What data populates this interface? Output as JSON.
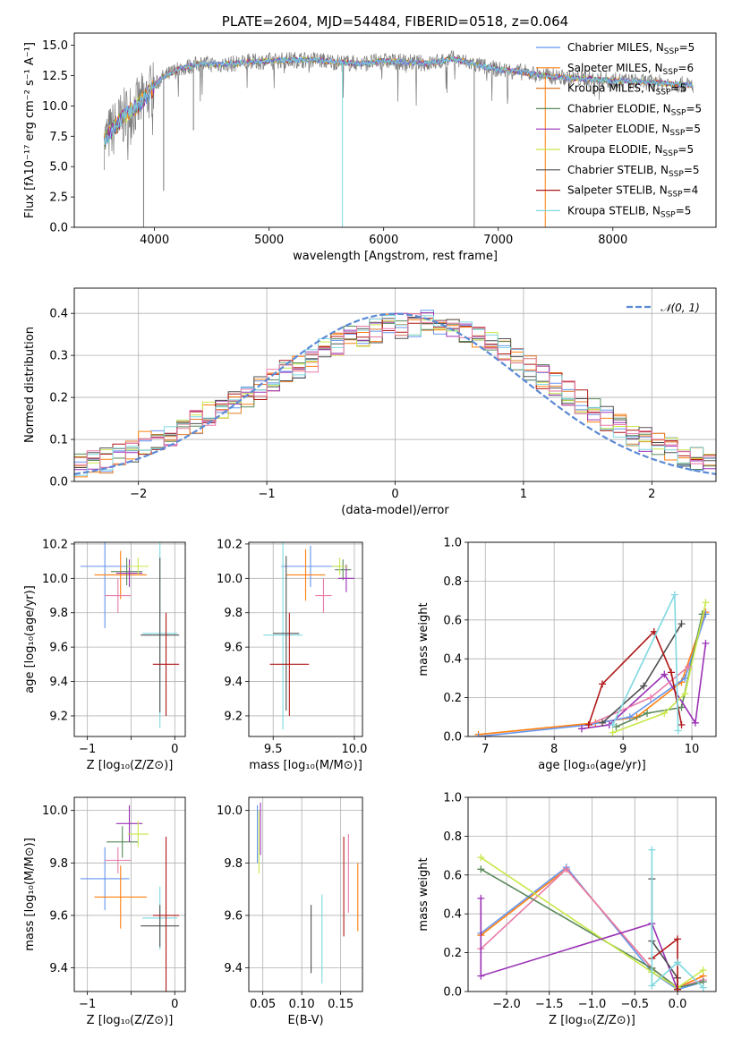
{
  "colors": {
    "chabrier_miles": "#6495ed",
    "salpeter_miles": "#ff7f0e",
    "kroupa_miles": "#e07b2a",
    "chabrier_elodie": "#5a8a5a",
    "salpeter_elodie": "#9a31b5",
    "kroupa_elodie": "#c8e84a",
    "chabrier_stelib": "#505050",
    "salpeter_stelib": "#b01818",
    "kroupa_stelib": "#7fd8e0",
    "pink": "#e87aa8",
    "gauss": "#5b8ad6",
    "grid": "#b0b0b0"
  },
  "chart_data": [
    {
      "id": "spectrum",
      "type": "line",
      "title": "PLATE=2604, MJD=54484, FIBERID=0518, z=0.064",
      "xlabel": "wavelength [Angstrom, rest frame]",
      "ylabel": "Flux [fλ10⁻¹⁷ erg cm⁻² s⁻¹ A⁻¹]",
      "xlim": [
        3300,
        8900
      ],
      "ylim": [
        0,
        16
      ],
      "xticks": [
        4000,
        5000,
        6000,
        7000,
        8000
      ],
      "yticks": [
        0.0,
        2.5,
        5.0,
        7.5,
        10.0,
        12.5,
        15.0
      ],
      "grid": false,
      "legend_position": "top-right",
      "series": [
        {
          "name": "Chabrier MILES, N",
          "sub": "SSP",
          "suffix": "=5",
          "color_key": "chabrier_miles"
        },
        {
          "name": "Salpeter MILES, N",
          "sub": "SSP",
          "suffix": "=6",
          "color_key": "salpeter_miles"
        },
        {
          "name": "Kroupa MILES, N",
          "sub": "SSP",
          "suffix": "=5",
          "color_key": "kroupa_miles"
        },
        {
          "name": "Chabrier ELODIE, N",
          "sub": "SSP",
          "suffix": "=5",
          "color_key": "chabrier_elodie"
        },
        {
          "name": "Salpeter ELODIE, N",
          "sub": "SSP",
          "suffix": "=5",
          "color_key": "salpeter_elodie"
        },
        {
          "name": "Kroupa ELODIE, N",
          "sub": "SSP",
          "suffix": "=5",
          "color_key": "kroupa_elodie"
        },
        {
          "name": "Chabrier STELIB, N",
          "sub": "SSP",
          "suffix": "=5",
          "color_key": "chabrier_stelib"
        },
        {
          "name": "Salpeter STELIB, N",
          "sub": "SSP",
          "suffix": "=4",
          "color_key": "salpeter_stelib"
        },
        {
          "name": "Kroupa STELIB, N",
          "sub": "SSP",
          "suffix": "=5",
          "color_key": "kroupa_stelib"
        }
      ],
      "continuum": {
        "x": [
          3550,
          3650,
          3750,
          3850,
          3950,
          4050,
          4200,
          4400,
          4600,
          4800,
          5000,
          5200,
          5400,
          5600,
          5800,
          6000,
          6200,
          6400,
          6600,
          6800,
          7000,
          7200,
          7400,
          7600,
          7800,
          8000,
          8200,
          8400,
          8700
        ],
        "y": [
          7.0,
          8.2,
          9.3,
          10.0,
          11.0,
          12.2,
          13.0,
          13.5,
          13.4,
          13.6,
          13.7,
          13.8,
          13.8,
          13.6,
          13.5,
          13.7,
          13.6,
          13.5,
          13.9,
          13.4,
          13.0,
          12.8,
          12.5,
          12.3,
          12.2,
          12.1,
          12.0,
          11.9,
          11.7
        ]
      },
      "spikes_down": [
        {
          "x": 3905,
          "y": 0
        },
        {
          "x": 4080,
          "y": 3.0
        },
        {
          "x": 4340,
          "y": 8.0
        },
        {
          "x": 5640,
          "y": 0
        },
        {
          "x": 6790,
          "y": 0
        },
        {
          "x": 7410,
          "y": 0
        }
      ]
    },
    {
      "id": "residuals",
      "type": "histogram",
      "xlabel": "(data-model)/error",
      "ylabel": "Normed distribution",
      "xlim": [
        -2.5,
        2.5
      ],
      "ylim": [
        0,
        0.46
      ],
      "xticks": [
        -2,
        -1,
        0,
        1,
        2
      ],
      "yticks": [
        0.0,
        0.1,
        0.2,
        0.3,
        0.4
      ],
      "grid": true,
      "legend": "𝒩(0, 1)",
      "legend_position": "top-right",
      "bin_width": 0.1,
      "gauss_curve": "normal pdf mean 0 sigma 1",
      "envelope": [
        0.04,
        0.045,
        0.05,
        0.06,
        0.07,
        0.09,
        0.1,
        0.11,
        0.13,
        0.14,
        0.16,
        0.175,
        0.19,
        0.2,
        0.22,
        0.24,
        0.26,
        0.27,
        0.29,
        0.31,
        0.33,
        0.34,
        0.35,
        0.36,
        0.37,
        0.37,
        0.37,
        0.38,
        0.37,
        0.36,
        0.35,
        0.34,
        0.33,
        0.31,
        0.29,
        0.27,
        0.25,
        0.23,
        0.21,
        0.19,
        0.17,
        0.15,
        0.13,
        0.11,
        0.1,
        0.085,
        0.075,
        0.065,
        0.055,
        0.05
      ]
    },
    {
      "id": "age_vs_Z",
      "type": "scatter",
      "xlabel": "Z [log₁₀(Z/Z⊙)]",
      "ylabel": "age  [log₁₀(age/yr)]",
      "xlim": [
        -1.15,
        0.12
      ],
      "ylim": [
        9.08,
        10.21
      ],
      "xticks": [
        -1,
        -0.5,
        0
      ],
      "xticklabels": [
        "−1",
        "",
        "0"
      ],
      "yticks": [
        9.2,
        9.4,
        9.6,
        9.8,
        10.0,
        10.2
      ],
      "grid": true,
      "points": [
        {
          "x": -0.8,
          "y": 10.07,
          "xerr": 0.28,
          "yerr": 0.36,
          "color_key": "chabrier_miles"
        },
        {
          "x": -0.62,
          "y": 10.02,
          "xerr": 0.3,
          "yerr": 0.14,
          "color_key": "salpeter_miles"
        },
        {
          "x": -0.55,
          "y": 10.04,
          "xerr": 0.18,
          "yerr": 0.08,
          "color_key": "chabrier_elodie"
        },
        {
          "x": -0.52,
          "y": 10.03,
          "xerr": 0.15,
          "yerr": 0.08,
          "color_key": "salpeter_elodie"
        },
        {
          "x": -0.42,
          "y": 10.07,
          "xerr": 0.12,
          "yerr": 0.05,
          "color_key": "kroupa_elodie"
        },
        {
          "x": -0.65,
          "y": 9.9,
          "xerr": 0.15,
          "yerr": 0.1,
          "color_key": "pink"
        },
        {
          "x": -0.17,
          "y": 9.68,
          "xerr": 0.2,
          "yerr": 0.55,
          "color_key": "kroupa_stelib"
        },
        {
          "x": -0.17,
          "y": 9.67,
          "xerr": 0.22,
          "yerr": 0.45,
          "color_key": "chabrier_stelib"
        },
        {
          "x": -0.1,
          "y": 9.5,
          "xerr": 0.15,
          "yerr": 0.3,
          "color_key": "salpeter_stelib"
        }
      ]
    },
    {
      "id": "age_vs_mass",
      "type": "scatter",
      "xlabel": "mass [log₁₀(M/M⊙)]",
      "ylabel": "",
      "xlim": [
        9.35,
        10.05
      ],
      "ylim": [
        9.08,
        10.21
      ],
      "xticks": [
        9.5,
        10.0
      ],
      "xticklabels": [
        "9.5",
        "10.0"
      ],
      "yticks": [
        9.2,
        9.4,
        9.6,
        9.8,
        10.0,
        10.2
      ],
      "grid": true,
      "points": [
        {
          "x": 9.73,
          "y": 10.07,
          "xerr": 0.18,
          "yerr": 0.12,
          "color_key": "chabrier_miles"
        },
        {
          "x": 9.7,
          "y": 10.02,
          "xerr": 0.12,
          "yerr": 0.15,
          "color_key": "salpeter_miles"
        },
        {
          "x": 9.93,
          "y": 10.05,
          "xerr": 0.05,
          "yerr": 0.06,
          "color_key": "chabrier_elodie"
        },
        {
          "x": 9.95,
          "y": 10.0,
          "xerr": 0.05,
          "yerr": 0.08,
          "color_key": "salpeter_elodie"
        },
        {
          "x": 9.91,
          "y": 10.07,
          "xerr": 0.05,
          "yerr": 0.05,
          "color_key": "kroupa_elodie"
        },
        {
          "x": 9.81,
          "y": 9.9,
          "xerr": 0.05,
          "yerr": 0.1,
          "color_key": "pink"
        },
        {
          "x": 9.56,
          "y": 9.67,
          "xerr": 0.12,
          "yerr": 0.55,
          "color_key": "kroupa_stelib"
        },
        {
          "x": 9.58,
          "y": 9.68,
          "xerr": 0.08,
          "yerr": 0.45,
          "color_key": "chabrier_stelib"
        },
        {
          "x": 9.6,
          "y": 9.5,
          "xerr": 0.12,
          "yerr": 0.3,
          "color_key": "salpeter_stelib"
        }
      ]
    },
    {
      "id": "weight_vs_age",
      "type": "line",
      "xlabel": "age  [log₁₀(age/yr)]",
      "ylabel": "mass weight",
      "xlim": [
        6.75,
        10.35
      ],
      "ylim": [
        0,
        1.0
      ],
      "xticks": [
        7,
        8,
        9,
        10
      ],
      "yticks": [
        0.0,
        0.2,
        0.4,
        0.6,
        0.8,
        1.0
      ],
      "grid": true,
      "series": [
        {
          "color_key": "salpeter_miles",
          "x": [
            6.9,
            8.6,
            9.2,
            9.85,
            10.2
          ],
          "y": [
            0.01,
            0.07,
            0.1,
            0.28,
            0.64
          ]
        },
        {
          "color_key": "chabrier_miles",
          "x": [
            6.9,
            8.5,
            9.1,
            9.9,
            10.2
          ],
          "y": [
            0.0,
            0.06,
            0.1,
            0.3,
            0.63
          ]
        },
        {
          "color_key": "chabrier_elodie",
          "x": [
            8.9,
            9.35,
            9.85,
            10.15
          ],
          "y": [
            0.05,
            0.12,
            0.15,
            0.63
          ]
        },
        {
          "color_key": "salpeter_elodie",
          "x": [
            8.4,
            8.8,
            9.6,
            10.05,
            10.2
          ],
          "y": [
            0.04,
            0.06,
            0.32,
            0.07,
            0.48
          ]
        },
        {
          "color_key": "kroupa_elodie",
          "x": [
            8.85,
            9.6,
            9.9,
            10.2
          ],
          "y": [
            0.02,
            0.12,
            0.22,
            0.69
          ]
        },
        {
          "color_key": "pink",
          "x": [
            8.5,
            9.4,
            9.95
          ],
          "y": [
            0.06,
            0.2,
            0.36
          ]
        },
        {
          "color_key": "chabrier_stelib",
          "x": [
            8.7,
            9.3,
            9.85
          ],
          "y": [
            0.07,
            0.26,
            0.58
          ]
        },
        {
          "color_key": "salpeter_stelib",
          "x": [
            8.5,
            8.7,
            9.45,
            9.7,
            9.85
          ],
          "y": [
            0.06,
            0.27,
            0.54,
            0.33,
            0.06
          ]
        },
        {
          "color_key": "kroupa_stelib",
          "x": [
            8.85,
            9.75,
            9.8
          ],
          "y": [
            0.06,
            0.73,
            0.03
          ]
        }
      ]
    },
    {
      "id": "mass_vs_Z",
      "type": "scatter",
      "xlabel": "Z [log₁₀(Z/Z⊙)]",
      "ylabel": "mass [log₁₀(M/M⊙)]",
      "xlim": [
        -1.15,
        0.12
      ],
      "ylim": [
        9.31,
        10.05
      ],
      "xticks": [
        -1,
        -0.5,
        0
      ],
      "xticklabels": [
        "−1",
        "",
        "0"
      ],
      "yticks": [
        9.4,
        9.6,
        9.8,
        10.0
      ],
      "grid": true,
      "points": [
        {
          "x": -0.8,
          "y": 9.74,
          "xerr": 0.28,
          "yerr": 0.12,
          "color_key": "chabrier_miles"
        },
        {
          "x": -0.62,
          "y": 9.67,
          "xerr": 0.3,
          "yerr": 0.12,
          "color_key": "salpeter_miles"
        },
        {
          "x": -0.6,
          "y": 9.88,
          "xerr": 0.18,
          "yerr": 0.06,
          "color_key": "chabrier_elodie"
        },
        {
          "x": -0.52,
          "y": 9.95,
          "xerr": 0.15,
          "yerr": 0.07,
          "color_key": "salpeter_elodie"
        },
        {
          "x": -0.42,
          "y": 9.91,
          "xerr": 0.12,
          "yerr": 0.05,
          "color_key": "kroupa_elodie"
        },
        {
          "x": -0.65,
          "y": 9.81,
          "xerr": 0.15,
          "yerr": 0.05,
          "color_key": "pink"
        },
        {
          "x": -0.17,
          "y": 9.59,
          "xerr": 0.2,
          "yerr": 0.12,
          "color_key": "kroupa_stelib"
        },
        {
          "x": -0.17,
          "y": 9.56,
          "xerr": 0.22,
          "yerr": 0.08,
          "color_key": "chabrier_stelib"
        },
        {
          "x": -0.1,
          "y": 9.6,
          "xerr": 0.15,
          "yerr": 0.3,
          "color_key": "salpeter_stelib"
        }
      ]
    },
    {
      "id": "mass_vs_ebv",
      "type": "scatter",
      "xlabel": "E(B-V)",
      "ylabel": "",
      "xlim": [
        0.032,
        0.178
      ],
      "ylim": [
        9.31,
        10.05
      ],
      "xticks": [
        0.05,
        0.1,
        0.15
      ],
      "xticklabels": [
        "0.05",
        "0.10",
        "0.15"
      ],
      "yticks": [
        9.4,
        9.6,
        9.8,
        10.0
      ],
      "grid": true,
      "points": [
        {
          "x": 0.043,
          "y": 9.91,
          "xerr": 0,
          "yerr": 0.11,
          "color_key": "chabrier_miles"
        },
        {
          "x": 0.045,
          "y": 9.88,
          "xerr": 0,
          "yerr": 0.12,
          "color_key": "kroupa_elodie"
        },
        {
          "x": 0.047,
          "y": 9.93,
          "xerr": 0,
          "yerr": 0.1,
          "color_key": "salpeter_elodie"
        },
        {
          "x": 0.112,
          "y": 9.51,
          "xerr": 0,
          "yerr": 0.13,
          "color_key": "chabrier_stelib"
        },
        {
          "x": 0.126,
          "y": 9.51,
          "xerr": 0,
          "yerr": 0.17,
          "color_key": "kroupa_stelib"
        },
        {
          "x": 0.154,
          "y": 9.71,
          "xerr": 0,
          "yerr": 0.19,
          "color_key": "salpeter_stelib"
        },
        {
          "x": 0.16,
          "y": 9.76,
          "xerr": 0,
          "yerr": 0.15,
          "color_key": "pink"
        },
        {
          "x": 0.172,
          "y": 9.67,
          "xerr": 0,
          "yerr": 0.13,
          "color_key": "salpeter_miles"
        }
      ]
    },
    {
      "id": "weight_vs_Z",
      "type": "line",
      "xlabel": "Z [log₁₀(Z/Z⊙)]",
      "ylabel": "mass weight",
      "xlim": [
        -2.45,
        0.45
      ],
      "ylim": [
        0,
        1.0
      ],
      "xticks": [
        -2.0,
        -1.5,
        -1.0,
        -0.5,
        0.0
      ],
      "xticklabels": [
        "−2.0",
        "−1.5",
        "−1.0",
        "−0.5",
        "0.0"
      ],
      "yticks": [
        0.0,
        0.2,
        0.4,
        0.6,
        0.8,
        1.0
      ],
      "grid": true,
      "series": [
        {
          "color_key": "chabrier_miles",
          "x": [
            -2.3,
            -1.3,
            -0.3,
            0.0,
            0.3
          ],
          "y": [
            0.3,
            0.64,
            0.1,
            0.01,
            0.05
          ]
        },
        {
          "color_key": "salpeter_miles",
          "x": [
            -2.3,
            -1.3,
            -0.3,
            0.0,
            0.3
          ],
          "y": [
            0.29,
            0.63,
            0.12,
            0.02,
            0.08
          ]
        },
        {
          "color_key": "pink",
          "x": [
            -2.3,
            -1.3,
            -0.3,
            0.0,
            0.3
          ],
          "y": [
            0.22,
            0.63,
            0.12,
            0.02,
            0.06
          ]
        },
        {
          "color_key": "chabrier_elodie",
          "x": [
            -2.3,
            -0.3,
            0.0,
            0.3
          ],
          "y": [
            0.63,
            0.12,
            0.02,
            0.05
          ]
        },
        {
          "color_key": "kroupa_elodie",
          "x": [
            -2.3,
            -0.3,
            0.0,
            0.3
          ],
          "y": [
            0.69,
            0.1,
            0.02,
            0.11
          ]
        },
        {
          "color_key": "salpeter_elodie",
          "x": [
            -2.3,
            -2.3,
            -0.3,
            0.0
          ],
          "y": [
            0.48,
            0.08,
            0.35,
            0.01
          ]
        },
        {
          "color_key": "chabrier_stelib",
          "x": [
            -0.3,
            -0.3,
            0.0,
            0.0
          ],
          "y": [
            0.58,
            0.26,
            0.07,
            0.01
          ]
        },
        {
          "color_key": "salpeter_stelib",
          "x": [
            -0.3,
            0.0,
            0.0
          ],
          "y": [
            0.17,
            0.27,
            0.01
          ]
        },
        {
          "color_key": "kroupa_stelib",
          "x": [
            -0.3,
            -0.3,
            0.0,
            0.3
          ],
          "y": [
            0.73,
            0.03,
            0.15,
            0.02
          ]
        }
      ]
    }
  ]
}
